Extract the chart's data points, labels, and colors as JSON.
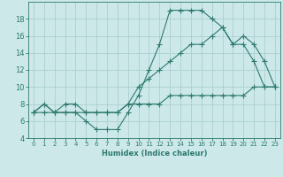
{
  "xlabel": "Humidex (Indice chaleur)",
  "bg_color": "#cce8e8",
  "line_color": "#2d7a6e",
  "grid_color": "#aacfcf",
  "xlim": [
    -0.5,
    23.5
  ],
  "ylim": [
    4,
    20
  ],
  "xticks": [
    0,
    1,
    2,
    3,
    4,
    5,
    6,
    7,
    8,
    9,
    10,
    11,
    12,
    13,
    14,
    15,
    16,
    17,
    18,
    19,
    20,
    21,
    22,
    23
  ],
  "yticks": [
    4,
    6,
    8,
    10,
    12,
    14,
    16,
    18
  ],
  "line1_x": [
    0,
    1,
    2,
    3,
    4,
    5,
    6,
    7,
    8,
    9,
    10,
    11,
    12,
    13,
    14,
    15,
    16,
    17,
    18,
    19,
    20,
    21,
    22,
    23
  ],
  "line1_y": [
    7,
    8,
    7,
    7,
    7,
    6,
    5,
    5,
    5,
    7,
    9,
    12,
    15,
    19,
    19,
    19,
    19,
    18,
    17,
    15,
    15,
    13,
    10,
    10
  ],
  "line2_x": [
    0,
    1,
    2,
    3,
    4,
    5,
    6,
    7,
    8,
    9,
    10,
    11,
    12,
    13,
    14,
    15,
    16,
    17,
    18,
    19,
    20,
    21,
    22,
    23
  ],
  "line2_y": [
    7,
    8,
    7,
    8,
    8,
    7,
    7,
    7,
    7,
    8,
    10,
    11,
    12,
    13,
    14,
    15,
    15,
    16,
    17,
    15,
    16,
    15,
    13,
    10
  ],
  "line3_x": [
    0,
    1,
    2,
    3,
    4,
    5,
    6,
    7,
    8,
    9,
    10,
    11,
    12,
    13,
    14,
    15,
    16,
    17,
    18,
    19,
    20,
    21,
    22,
    23
  ],
  "line3_y": [
    7,
    7,
    7,
    7,
    7,
    7,
    7,
    7,
    7,
    8,
    8,
    8,
    8,
    9,
    9,
    9,
    9,
    9,
    9,
    9,
    9,
    10,
    10,
    10
  ]
}
